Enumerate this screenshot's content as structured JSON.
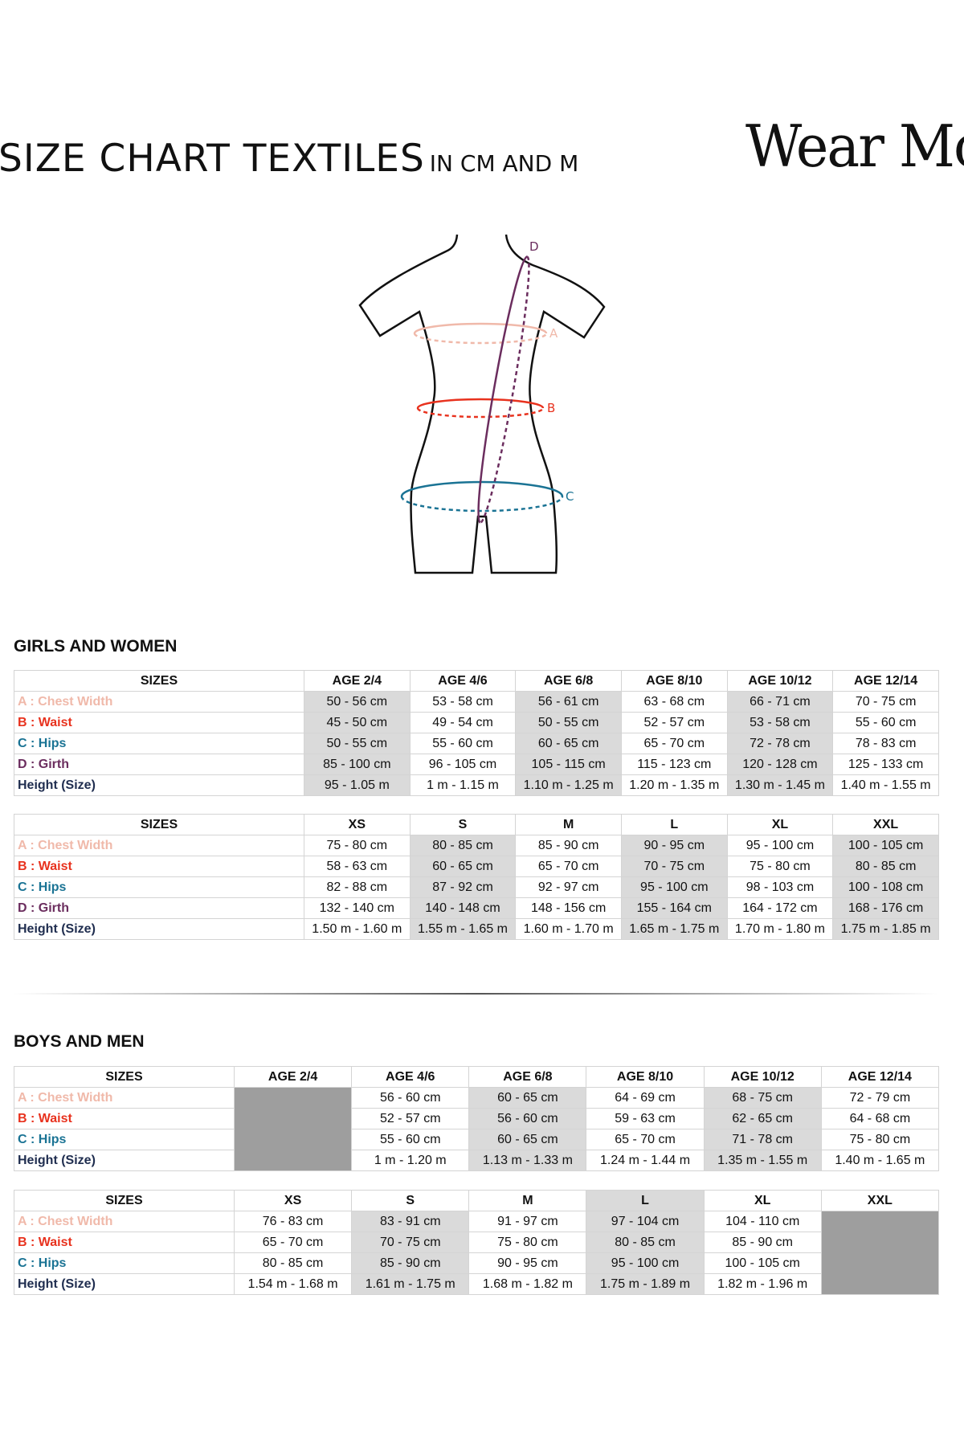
{
  "header": {
    "title": "SIZE CHART TEXTILES",
    "subtitle": "IN CM AND M",
    "logo": "Wear Moi"
  },
  "diagram": {
    "labels": {
      "a": "A",
      "b": "B",
      "c": "C",
      "d": "D"
    }
  },
  "colors": {
    "chest": "#f0b9aa",
    "waist": "#e8321e",
    "hips": "#1a7394",
    "girth": "#6b2d5e",
    "height": "#1f2d4f"
  },
  "girls": {
    "title": "GIRLS AND WOMEN",
    "kids": {
      "headers": [
        "SIZES",
        "AGE 2/4",
        "AGE 4/6",
        "AGE 6/8",
        "AGE 8/10",
        "AGE 10/12",
        "AGE 12/14"
      ],
      "rows": [
        {
          "label": "A : Chest Width",
          "values": [
            "50 - 56 cm",
            "53 - 58 cm",
            "56 - 61 cm",
            "63 - 68 cm",
            "66 - 71 cm",
            "70 - 75 cm"
          ]
        },
        {
          "label": "B : Waist",
          "values": [
            "45 - 50 cm",
            "49  - 54 cm",
            "50 - 55 cm",
            "52 - 57 cm",
            "53 - 58 cm",
            "55 - 60 cm"
          ]
        },
        {
          "label": "C : Hips",
          "values": [
            "50 - 55 cm",
            "55 - 60 cm",
            "60 - 65 cm",
            "65 - 70 cm",
            "72 - 78 cm",
            "78 - 83 cm"
          ]
        },
        {
          "label": "D : Girth",
          "values": [
            "85 - 100 cm",
            "96 - 105 cm",
            "105 - 115  cm",
            "115 - 123 cm",
            "120 - 128 cm",
            "125 - 133 cm"
          ]
        },
        {
          "label": "Height (Size)",
          "values": [
            "95 - 1.05 m",
            "1 m - 1.15 m",
            "1.10 m - 1.25 m",
            "1.20 m - 1.35 m",
            "1.30 m - 1.45 m",
            "1.40 m - 1.55 m"
          ]
        }
      ]
    },
    "adults": {
      "headers": [
        "SIZES",
        "XS",
        "S",
        "M",
        "L",
        "XL",
        "XXL"
      ],
      "rows": [
        {
          "label": "A : Chest Width",
          "values": [
            "75 - 80 cm",
            "80 - 85 cm",
            "85 - 90 cm",
            "90 - 95 cm",
            "95 - 100 cm",
            "100 - 105 cm"
          ]
        },
        {
          "label": "B : Waist",
          "values": [
            "58 - 63 cm",
            "60 - 65 cm",
            "65 - 70 cm",
            "70 - 75 cm",
            "75 - 80 cm",
            "80 - 85 cm"
          ]
        },
        {
          "label": "C : Hips",
          "values": [
            "82 - 88 cm",
            "87 - 92 cm",
            "92 - 97 cm",
            "95 - 100 cm",
            "98 - 103 cm",
            "100 - 108 cm"
          ]
        },
        {
          "label": "D : Girth",
          "values": [
            "132 - 140 cm",
            "140 - 148 cm",
            "148 - 156 cm",
            "155 - 164 cm",
            "164 - 172 cm",
            "168 - 176 cm"
          ]
        },
        {
          "label": "Height (Size)",
          "values": [
            "1.50 m - 1.60 m",
            "1.55 m - 1.65 m",
            "1.60 m - 1.70 m",
            "1.65 m - 1.75 m",
            "1.70 m - 1.80 m",
            "1.75 m - 1.85 m"
          ]
        }
      ]
    }
  },
  "boys": {
    "title": "BOYS AND MEN",
    "kids": {
      "headers": [
        "SIZES",
        "AGE 2/4",
        "AGE 4/6",
        "AGE 6/8",
        "AGE 8/10",
        "AGE 10/12",
        "AGE 12/14"
      ],
      "rows": [
        {
          "label": "A : Chest Width",
          "values": [
            "",
            "56 - 60 cm",
            "60 - 65 cm",
            "64 - 69 cm",
            "68 - 75 cm",
            "72 - 79 cm"
          ]
        },
        {
          "label": "B : Waist",
          "values": [
            "",
            "52  - 57 cm",
            "56 - 60 cm",
            "59 - 63 cm",
            "62 - 65 cm",
            "64 - 68 cm"
          ]
        },
        {
          "label": "C : Hips",
          "values": [
            "",
            "55 - 60 cm",
            "60 - 65 cm",
            "65 - 70 cm",
            "71 - 78 cm",
            "75 - 80 cm"
          ]
        },
        {
          "label": "Height (Size)",
          "values": [
            "",
            "1 m - 1.20 m",
            "1.13 m - 1.33 m",
            "1.24 m - 1.44 m",
            "1.35 m - 1.55 m",
            "1.40 m - 1.65 m"
          ]
        }
      ]
    },
    "adults": {
      "headers": [
        "SIZES",
        "XS",
        "S",
        "M",
        "L",
        "XL",
        "XXL"
      ],
      "rows": [
        {
          "label": "A : Chest Width",
          "values": [
            "76 - 83 cm",
            "83 - 91 cm",
            "91 - 97 cm",
            "97 - 104 cm",
            "104 - 110 cm",
            ""
          ]
        },
        {
          "label": "B : Waist",
          "values": [
            "65 - 70 cm",
            "70 - 75 cm",
            "75 - 80 cm",
            "80 - 85 cm",
            "85 - 90 cm",
            ""
          ]
        },
        {
          "label": "C : Hips",
          "values": [
            "80 - 85 cm",
            "85 - 90 cm",
            "90 - 95 cm",
            "95 - 100 cm",
            "100 - 105 cm",
            ""
          ]
        },
        {
          "label": "Height (Size)",
          "values": [
            "1.54 m - 1.68 m",
            "1.61 m - 1.75 m",
            "1.68 m - 1.82 m",
            "1.75 m - 1.89 m",
            "1.82 m - 1.96 m",
            ""
          ]
        }
      ]
    }
  }
}
